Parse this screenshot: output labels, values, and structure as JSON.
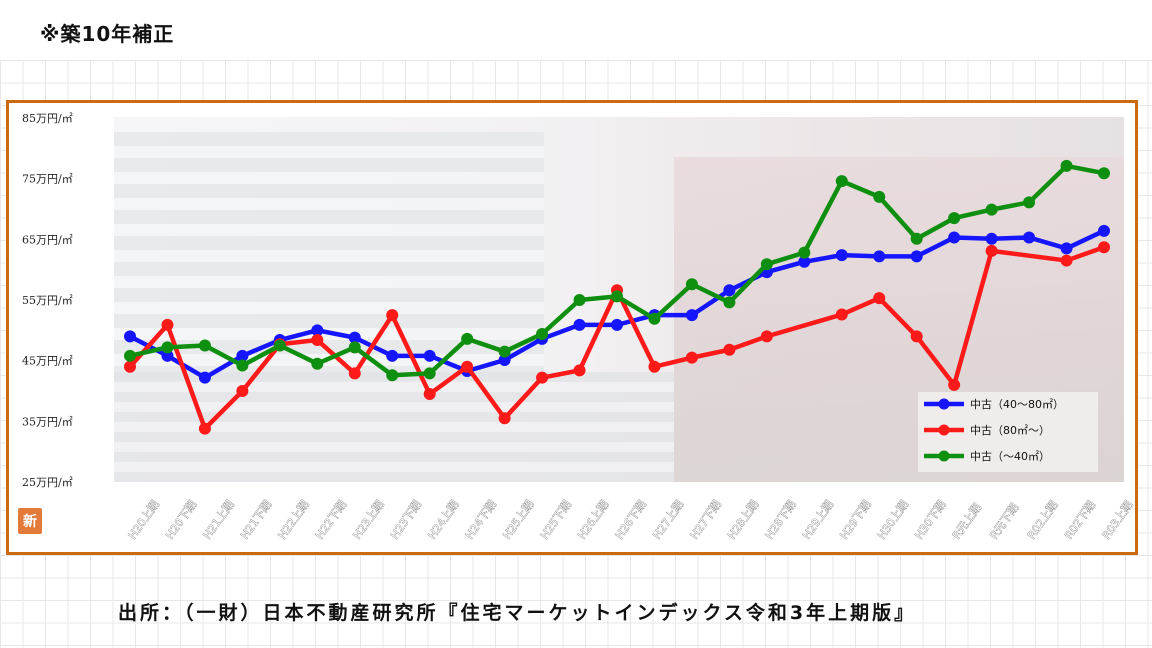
{
  "header": {
    "note": "※築10年補正"
  },
  "footer": {
    "source": "出所：（一財）日本不動産研究所『住宅マーケットインデックス令和3年上期版』"
  },
  "logo": {
    "text": "新"
  },
  "chart_data": {
    "type": "line",
    "title": "",
    "xlabel": "",
    "ylabel": "",
    "ylim": [
      25,
      85
    ],
    "yticks": [
      25,
      35,
      45,
      55,
      65,
      75,
      85
    ],
    "ytick_labels": [
      "25万円/㎡",
      "35万円/㎡",
      "45万円/㎡",
      "55万円/㎡",
      "65万円/㎡",
      "75万円/㎡",
      "85万円/㎡"
    ],
    "legend_position": "bottom-right",
    "grid": false,
    "categories": [
      "H20上期",
      "H20下期",
      "H21上期",
      "H21下期",
      "H22上期",
      "H22下期",
      "H23上期",
      "H23下期",
      "H24上期",
      "H24下期",
      "H25上期",
      "H25下期",
      "H26上期",
      "H26下期",
      "H27上期",
      "H27下期",
      "H28上期",
      "H28下期",
      "H29上期",
      "H29下期",
      "H30上期",
      "H30下期",
      "R元上期",
      "R元下期",
      "R02上期",
      "R02下期",
      "R03上期"
    ],
    "series": [
      {
        "name": "中古（40～80㎡）",
        "color": "#1515ff",
        "values": [
          49,
          45.8,
          42.2,
          45.8,
          48.4,
          50,
          48.8,
          45.8,
          45.8,
          43.3,
          45.1,
          48.6,
          50.9,
          50.9,
          52.5,
          52.5,
          56.6,
          59.6,
          61.3,
          62.4,
          62.2,
          62.2,
          65.3,
          65.1,
          65.3,
          63.5,
          66.4
        ]
      },
      {
        "name": "中古（80㎡～）",
        "color": "#ff1a1a",
        "values": [
          44,
          50.9,
          33.8,
          40,
          47.7,
          48.4,
          42.9,
          52.5,
          39.5,
          44,
          35.5,
          42.2,
          43.4,
          56.6,
          44,
          45.5,
          46.8,
          49,
          null,
          52.6,
          55.3,
          49,
          41,
          63.1,
          null,
          61.5,
          63.7
        ]
      },
      {
        "name": "中古（～40㎡）",
        "color": "#0f8f0f",
        "values": [
          45.8,
          47.2,
          47.5,
          44.2,
          47.5,
          44.5,
          47.2,
          42.6,
          42.9,
          48.6,
          46.5,
          49.4,
          55,
          55.6,
          51.9,
          57.6,
          54.6,
          60.9,
          62.8,
          74.6,
          72,
          65.1,
          68.5,
          69.9,
          71.1,
          77.1,
          75.9
        ]
      }
    ]
  }
}
